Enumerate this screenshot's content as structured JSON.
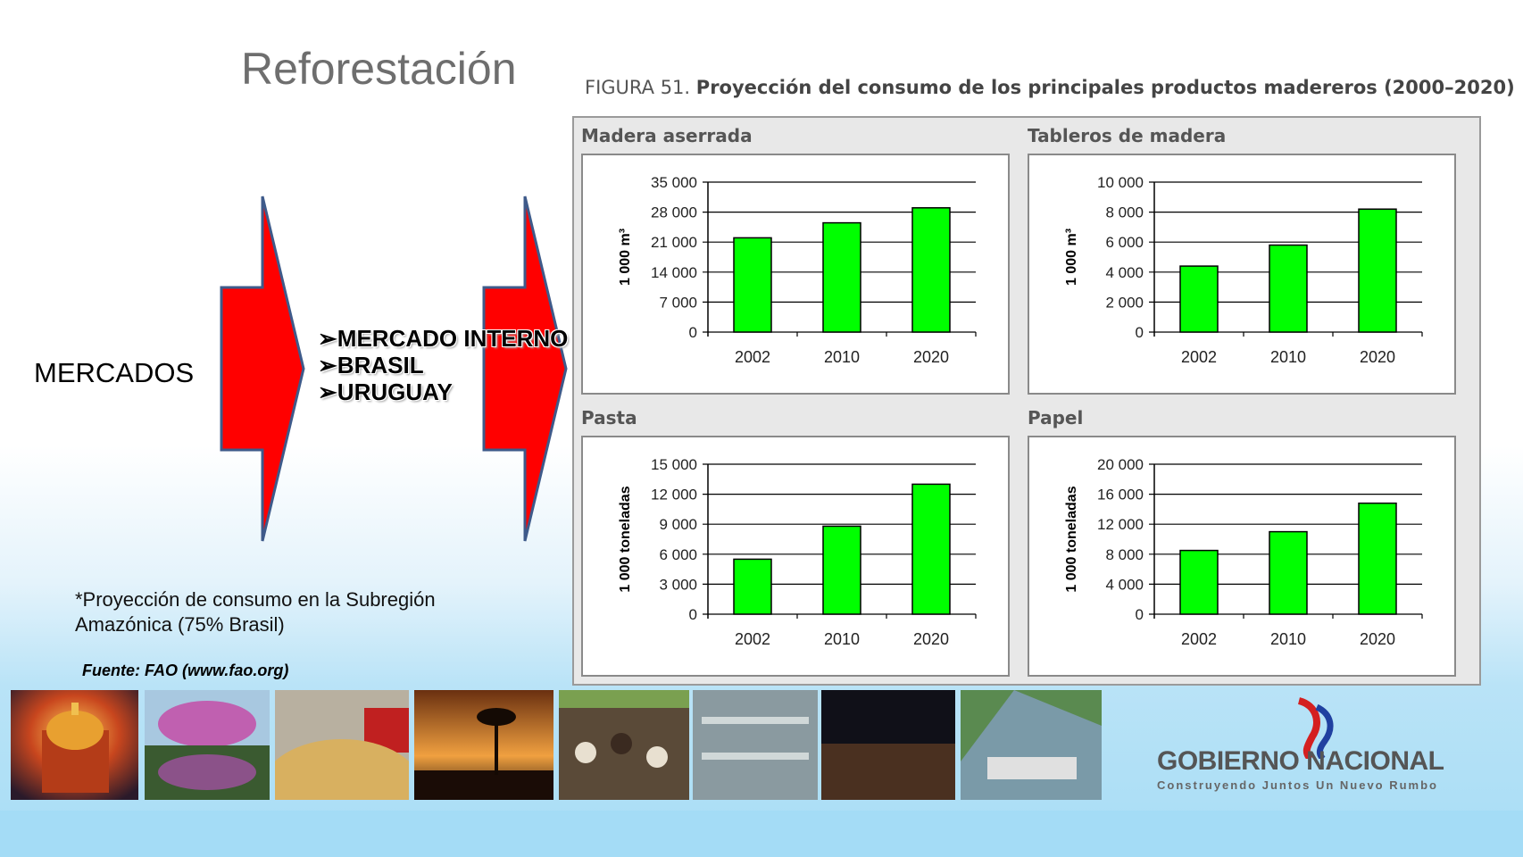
{
  "slide": {
    "title": "Reforestación",
    "mercados_label": "MERCADOS",
    "bullets": [
      "MERCADO INTERNO",
      "BRASIL",
      "URUGUAY"
    ],
    "note_line1": "*Proyección de consumo en la Subregión",
    "note_line2": "Amazónica (75% Brasil)",
    "source": "Fuente: FAO (www.fao.org)",
    "arrow_color": "#ff0000",
    "bar_color": "#00ff00"
  },
  "figure": {
    "caption_prefix": "FIGURA 51.",
    "caption_title": "Proyección del consumo de los principales productos madereros (2000–2020)"
  },
  "chart_data": [
    {
      "type": "bar",
      "title": "Madera aserrada",
      "ylabel": "1 000 m³",
      "categories": [
        "2002",
        "2010",
        "2020"
      ],
      "values": [
        22000,
        25500,
        29000
      ],
      "ylim": [
        0,
        35000
      ],
      "yticks": [
        0,
        7000,
        14000,
        21000,
        28000,
        35000
      ],
      "ytick_labels": [
        "0",
        "7 000",
        "14 000",
        "21 000",
        "28 000",
        "35 000"
      ]
    },
    {
      "type": "bar",
      "title": "Tableros de madera",
      "ylabel": "1 000 m³",
      "categories": [
        "2002",
        "2010",
        "2020"
      ],
      "values": [
        4400,
        5800,
        8200
      ],
      "ylim": [
        0,
        10000
      ],
      "yticks": [
        0,
        2000,
        4000,
        6000,
        8000,
        10000
      ],
      "ytick_labels": [
        "0",
        "2 000",
        "4 000",
        "6 000",
        "8 000",
        "10 000"
      ]
    },
    {
      "type": "bar",
      "title": "Pasta",
      "ylabel": "1 000 toneladas",
      "categories": [
        "2002",
        "2010",
        "2020"
      ],
      "values": [
        5500,
        8800,
        13000
      ],
      "ylim": [
        0,
        15000
      ],
      "yticks": [
        0,
        3000,
        6000,
        9000,
        12000,
        15000
      ],
      "ytick_labels": [
        "0",
        "3 000",
        "6 000",
        "9 000",
        "12 000",
        "15 000"
      ]
    },
    {
      "type": "bar",
      "title": "Papel",
      "ylabel": "1 000 toneladas",
      "categories": [
        "2002",
        "2010",
        "2020"
      ],
      "values": [
        8500,
        11000,
        14800
      ],
      "ylim": [
        0,
        20000
      ],
      "yticks": [
        0,
        4000,
        8000,
        12000,
        16000,
        20000
      ],
      "ytick_labels": [
        "0",
        "4 000",
        "8 000",
        "12 000",
        "16 000",
        "20 000"
      ]
    }
  ],
  "logo": {
    "name": "GOBIERNO NACIONAL",
    "tagline": "Construyendo Juntos Un Nuevo Rumbo"
  }
}
